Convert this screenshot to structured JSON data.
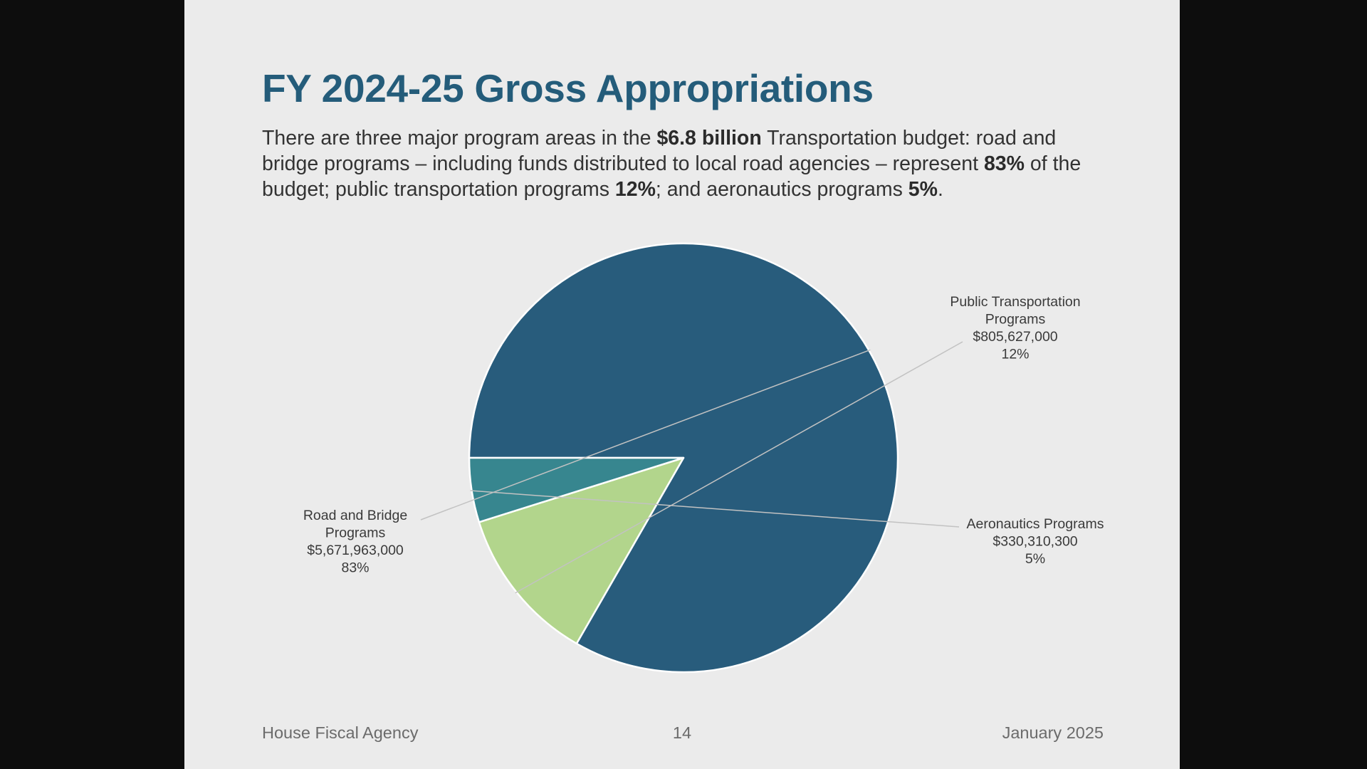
{
  "title": "FY 2024-25 Gross Appropriations",
  "body": {
    "p1": "There are three major program areas in the ",
    "b1": "$6.8 billion",
    "p2": " Transportation budget: road and bridge programs – including funds distributed to local road agencies – represent ",
    "b2": "83%",
    "p3": " of the budget; public transportation programs ",
    "b3": "12%",
    "p4": "; and aeronautics programs ",
    "b4": "5%",
    "p5": "."
  },
  "chart_data": {
    "type": "pie",
    "title": "",
    "slices": [
      {
        "label_lines": [
          "Road and Bridge",
          "Programs"
        ],
        "value": 5671963000,
        "value_label": "$5,671,963,000",
        "percent_label": "83%",
        "color": "#285c7c"
      },
      {
        "label_lines": [
          "Public Transportation",
          "Programs"
        ],
        "value": 805627000,
        "value_label": "$805,627,000",
        "percent_label": "12%",
        "color": "#b2d58c"
      },
      {
        "label_lines": [
          "Aeronautics Programs"
        ],
        "value": 330310300,
        "value_label": "$330,310,300",
        "percent_label": "5%",
        "color": "#37868f"
      }
    ],
    "legend": "none",
    "label_style": "outside with leader lines"
  },
  "footer": {
    "left": "House Fiscal Agency",
    "center": "14",
    "right": "January 2025"
  }
}
